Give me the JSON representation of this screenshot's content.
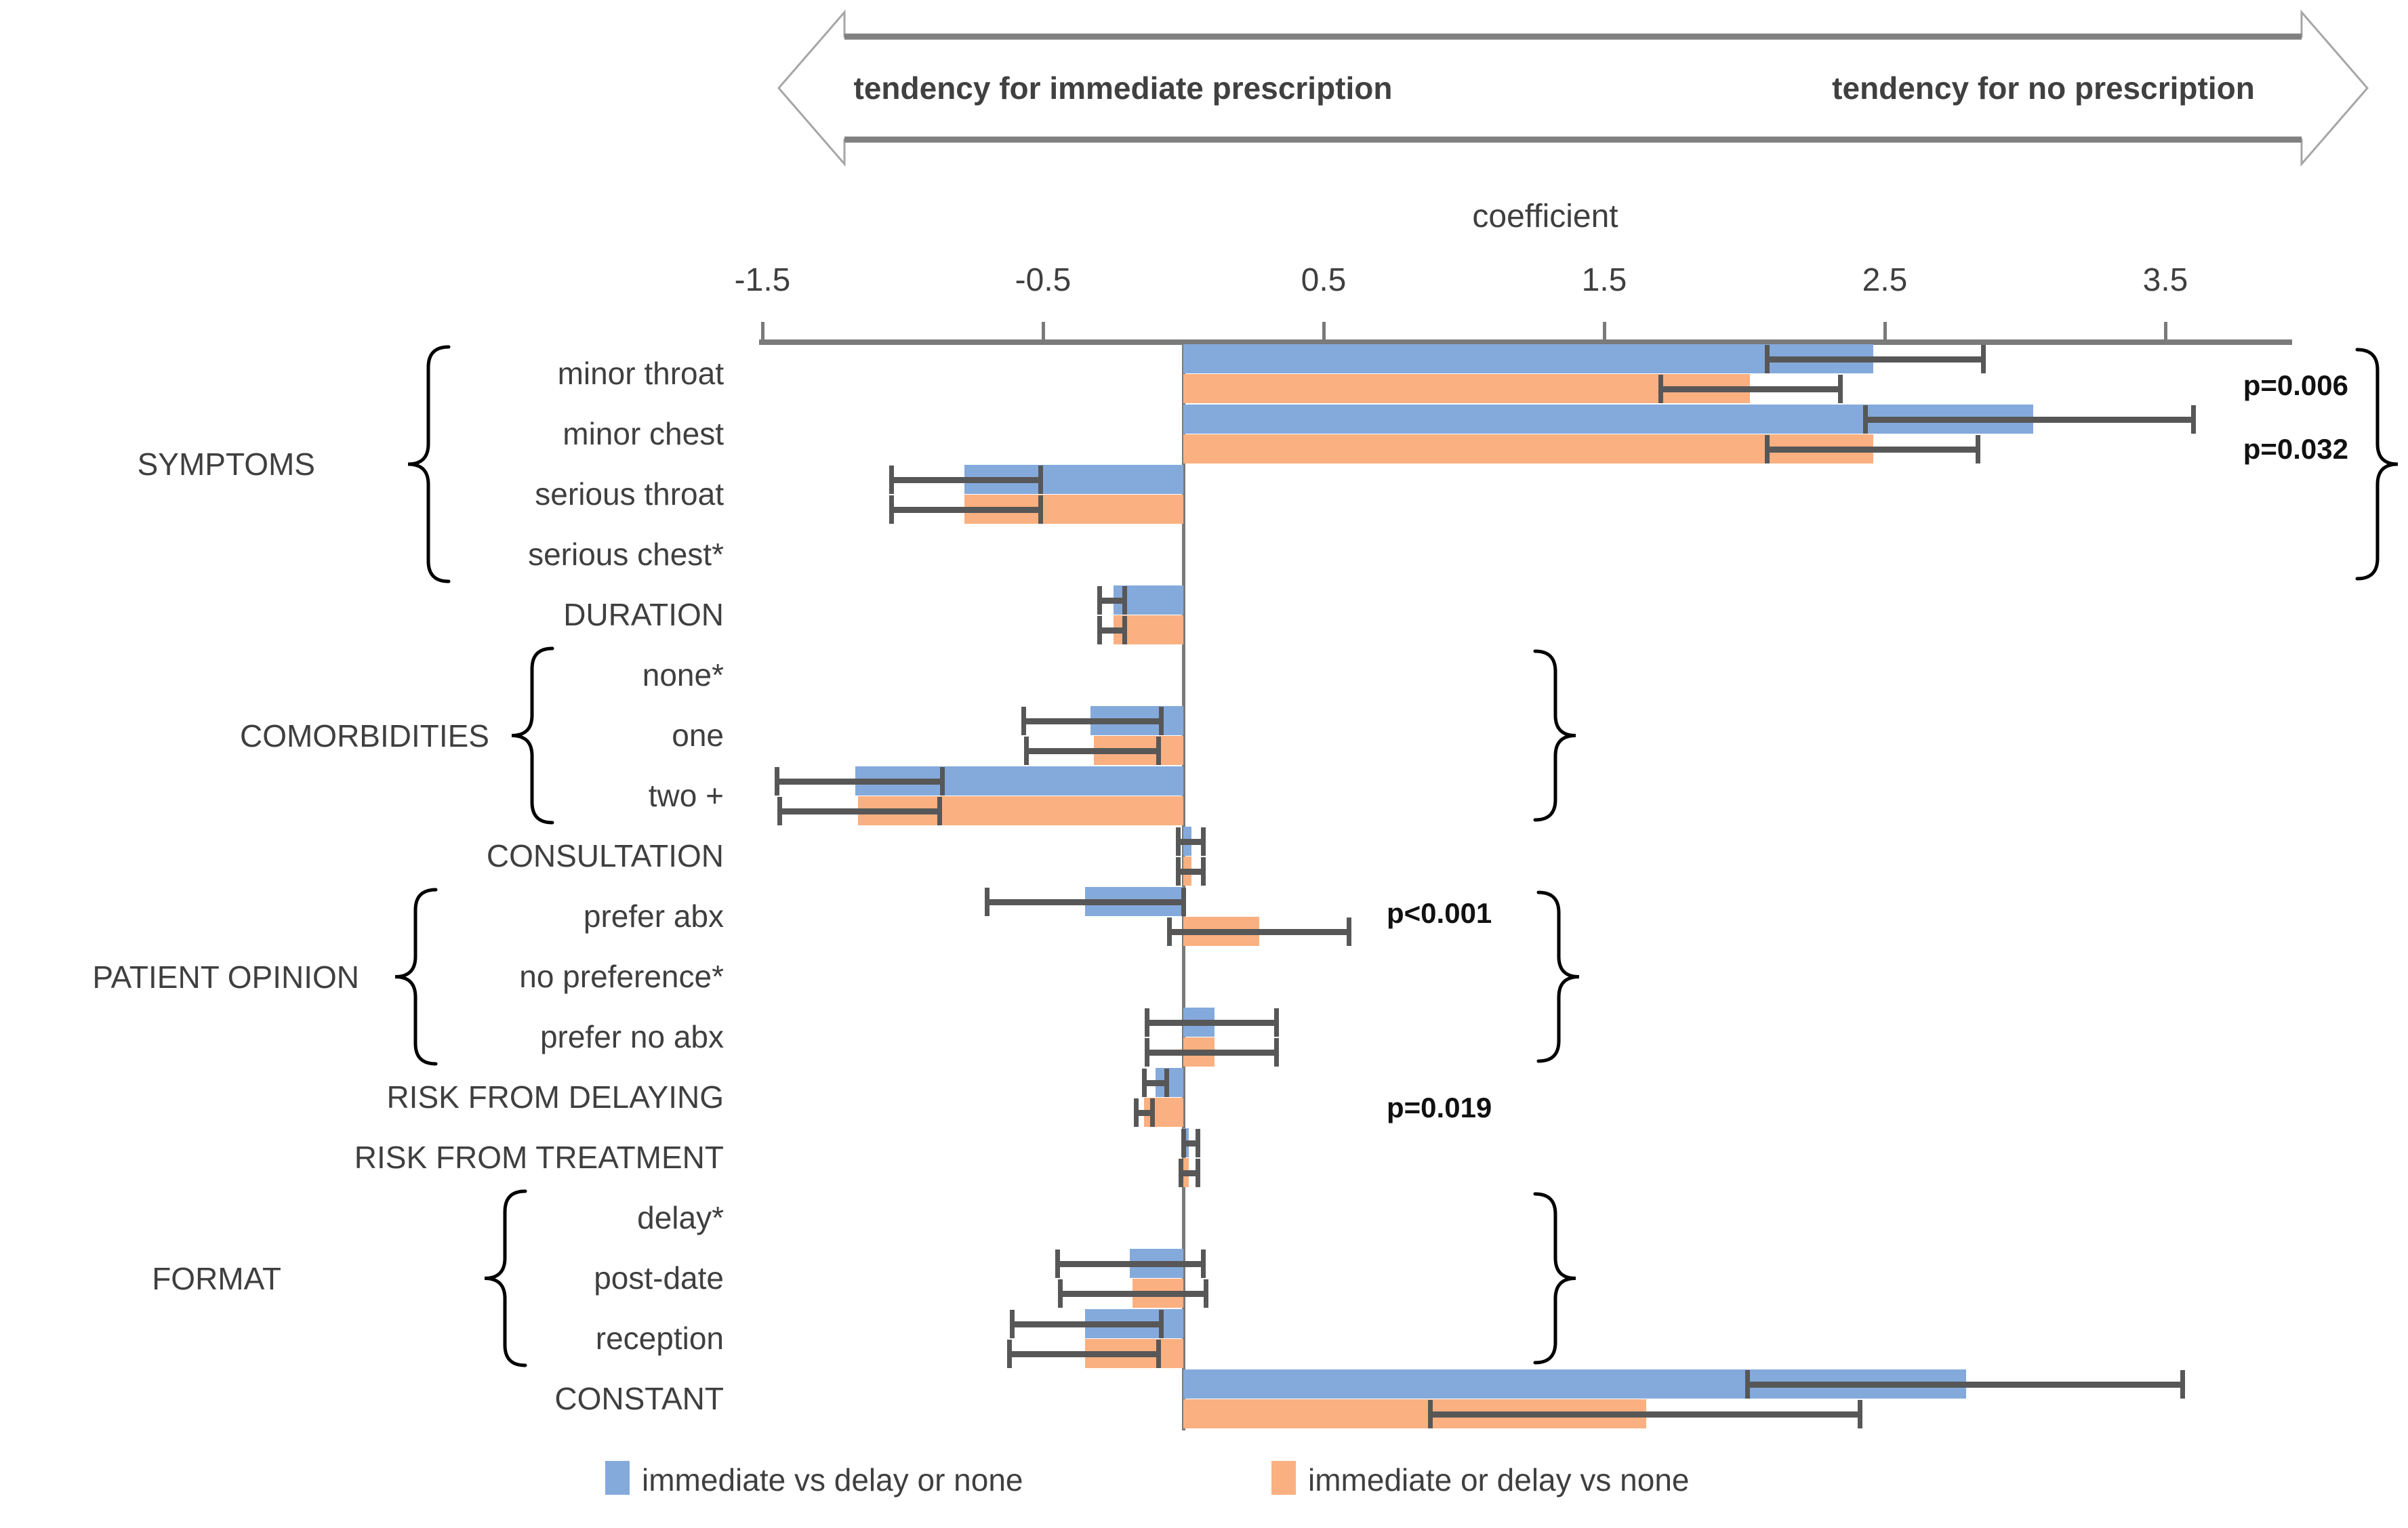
{
  "arrow": {
    "left_label": "tendency for immediate prescription",
    "right_label": "tendency for no prescription"
  },
  "legend": {
    "items": [
      {
        "label": "immediate vs delay or none",
        "color_key": "blue"
      },
      {
        "label": "immediate or delay vs none",
        "color_key": "orange"
      }
    ]
  },
  "colors": {
    "blue": "#84AADC",
    "orange": "#FBB081",
    "error_bar": "#575757",
    "axis": "#7A7A7A",
    "arrow_outline": "#A6A6A6",
    "arrow_line": "#808080",
    "text": "#3F3F3F",
    "p_value": "#111111",
    "brace": "#000000"
  },
  "chart_data": {
    "type": "bar",
    "orientation": "horizontal",
    "title": "",
    "xlabel": "coefficient",
    "xlim": [
      -2.05,
      4.35
    ],
    "x_ticks": [
      -1.5,
      -0.5,
      0.5,
      1.5,
      2.5,
      3.5
    ],
    "tick_labels": [
      "-1.5",
      "-0.5",
      "0.5",
      "1.5",
      "2.5",
      "3.5"
    ],
    "grid": false,
    "legend_position": "bottom",
    "series": [
      {
        "name": "immediate vs delay or none",
        "color_key": "blue"
      },
      {
        "name": "immediate or delay vs none",
        "color_key": "orange"
      }
    ],
    "rows": [
      {
        "label": "minor throat",
        "s1": {
          "v": 2.46,
          "ci": [
            2.08,
            2.85
          ]
        },
        "s2": {
          "v": 2.02,
          "ci": [
            1.7,
            2.34
          ]
        },
        "ref": false
      },
      {
        "label": "minor chest",
        "s1": {
          "v": 3.03,
          "ci": [
            2.43,
            3.6
          ]
        },
        "s2": {
          "v": 2.46,
          "ci": [
            2.08,
            2.83
          ]
        },
        "ref": false
      },
      {
        "label": "serious throat",
        "s1": {
          "v": -0.78,
          "ci": [
            -1.04,
            -0.51
          ]
        },
        "s2": {
          "v": -0.78,
          "ci": [
            -1.04,
            -0.51
          ]
        },
        "ref": false
      },
      {
        "label": "serious chest*",
        "s1": null,
        "s2": null,
        "ref": true
      },
      {
        "label": "DURATION",
        "s1": {
          "v": -0.25,
          "ci": [
            -0.3,
            -0.21
          ]
        },
        "s2": {
          "v": -0.25,
          "ci": [
            -0.3,
            -0.21
          ]
        },
        "ref": false
      },
      {
        "label": "none*",
        "s1": null,
        "s2": null,
        "ref": true
      },
      {
        "label": "one",
        "s1": {
          "v": -0.33,
          "ci": [
            -0.57,
            -0.08
          ]
        },
        "s2": {
          "v": -0.32,
          "ci": [
            -0.56,
            -0.09
          ]
        },
        "ref": false
      },
      {
        "label": "two +",
        "s1": {
          "v": -1.17,
          "ci": [
            -1.45,
            -0.86
          ]
        },
        "s2": {
          "v": -1.16,
          "ci": [
            -1.44,
            -0.87
          ]
        },
        "ref": false
      },
      {
        "label": "CONSULTATION",
        "s1": {
          "v": 0.03,
          "ci": [
            -0.02,
            0.07
          ]
        },
        "s2": {
          "v": 0.03,
          "ci": [
            -0.02,
            0.07
          ]
        },
        "ref": false
      },
      {
        "label": "prefer abx",
        "s1": {
          "v": -0.35,
          "ci": [
            -0.7,
            0.0
          ]
        },
        "s2": {
          "v": 0.27,
          "ci": [
            -0.05,
            0.59
          ]
        },
        "ref": false
      },
      {
        "label": "no preference*",
        "s1": null,
        "s2": null,
        "ref": true
      },
      {
        "label": "prefer no abx",
        "s1": {
          "v": 0.11,
          "ci": [
            -0.13,
            0.33
          ]
        },
        "s2": {
          "v": 0.11,
          "ci": [
            -0.13,
            0.33
          ]
        },
        "ref": false
      },
      {
        "label": "RISK FROM DELAYING",
        "s1": {
          "v": -0.1,
          "ci": [
            -0.14,
            -0.06
          ]
        },
        "s2": {
          "v": -0.14,
          "ci": [
            -0.17,
            -0.11
          ]
        },
        "ref": false
      },
      {
        "label": "RISK FROM TREATMENT",
        "s1": {
          "v": 0.02,
          "ci": [
            0.0,
            0.05
          ]
        },
        "s2": {
          "v": 0.02,
          "ci": [
            -0.01,
            0.05
          ]
        },
        "ref": false
      },
      {
        "label": "delay*",
        "s1": null,
        "s2": null,
        "ref": true
      },
      {
        "label": "post-date",
        "s1": {
          "v": -0.19,
          "ci": [
            -0.45,
            0.07
          ]
        },
        "s2": {
          "v": -0.18,
          "ci": [
            -0.44,
            0.08
          ]
        },
        "ref": false
      },
      {
        "label": "reception",
        "s1": {
          "v": -0.35,
          "ci": [
            -0.61,
            -0.08
          ]
        },
        "s2": {
          "v": -0.35,
          "ci": [
            -0.62,
            -0.09
          ]
        },
        "ref": false
      },
      {
        "label": "CONSTANT",
        "s1": {
          "v": 2.79,
          "ci": [
            2.01,
            3.56
          ]
        },
        "s2": {
          "v": 1.65,
          "ci": [
            0.88,
            2.41
          ]
        },
        "ref": false
      }
    ],
    "groups": [
      {
        "label": "SYMPTOMS",
        "start_row": 0,
        "end_row": 3
      },
      {
        "label": "COMORBIDITIES",
        "start_row": 5,
        "end_row": 7
      },
      {
        "label": "PATIENT OPINION",
        "start_row": 9,
        "end_row": 11
      },
      {
        "label": "FORMAT",
        "start_row": 14,
        "end_row": 16
      }
    ],
    "annotations": [
      {
        "text": "p=0.006",
        "row": 0
      },
      {
        "text": "p=0.032",
        "row": 1
      },
      {
        "text": "p<0.001",
        "row": 9
      },
      {
        "text": "p=0.019",
        "row": 12
      }
    ]
  }
}
